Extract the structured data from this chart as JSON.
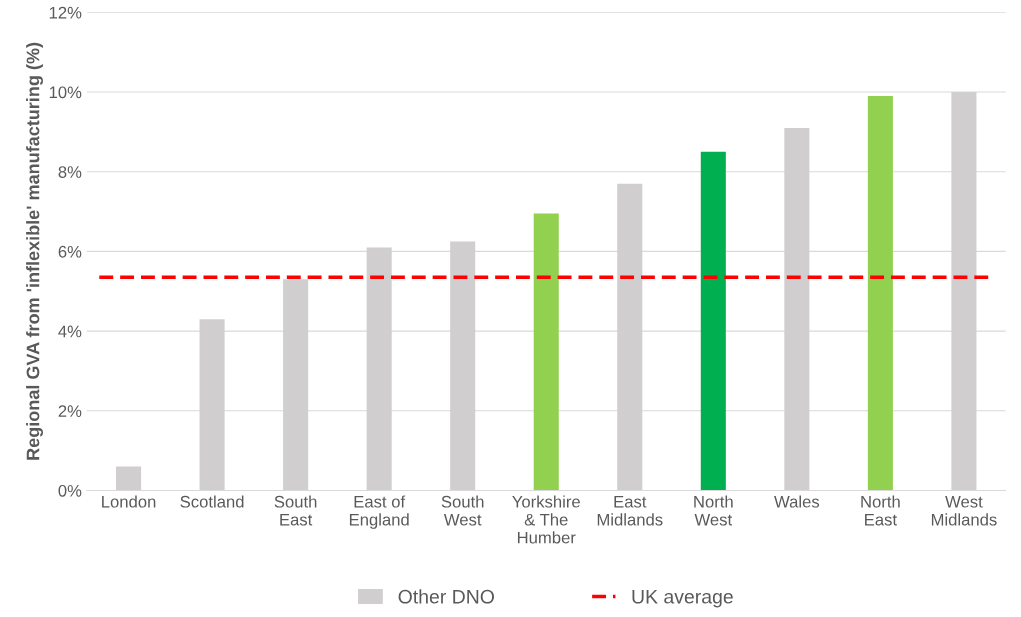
{
  "chart_data": {
    "type": "bar",
    "ylabel": "Regional GVA from 'inflexible' manufacturing (%)",
    "categories": [
      "London",
      "Scotland",
      "South\nEast",
      "East of\nEngland",
      "South\nWest",
      "Yorkshire\n& The\nHumber",
      "East\nMidlands",
      "North\nWest",
      "Wales",
      "North\nEast",
      "West\nMidlands"
    ],
    "series": [
      {
        "color": "#00b050",
        "values": [
          null,
          null,
          null,
          null,
          null,
          null,
          null,
          8.5,
          null,
          null,
          null
        ]
      },
      {
        "color": "#92d050",
        "values": [
          null,
          null,
          null,
          null,
          null,
          6.95,
          null,
          null,
          null,
          9.9,
          null
        ]
      },
      {
        "name": "Other DNO",
        "color": "#d0cece",
        "values": [
          0.6,
          4.3,
          5.3,
          6.1,
          6.25,
          null,
          7.7,
          null,
          9.1,
          null,
          10.0
        ]
      }
    ],
    "ylim": [
      0,
      12
    ],
    "yticks": [
      {
        "value": 0,
        "label": "0%"
      },
      {
        "value": 2,
        "label": "2%"
      },
      {
        "value": 4,
        "label": "4%"
      },
      {
        "value": 6,
        "label": "6%"
      },
      {
        "value": 8,
        "label": "8%"
      },
      {
        "value": 10,
        "label": "10%"
      },
      {
        "value": 12,
        "label": "12%"
      }
    ],
    "ref_lines": [
      {
        "axis": "y",
        "value": 5.35,
        "label": "UK average",
        "color": "#ff0000",
        "line_style": "dashed"
      }
    ],
    "grid": "y",
    "legend": "bottom"
  }
}
